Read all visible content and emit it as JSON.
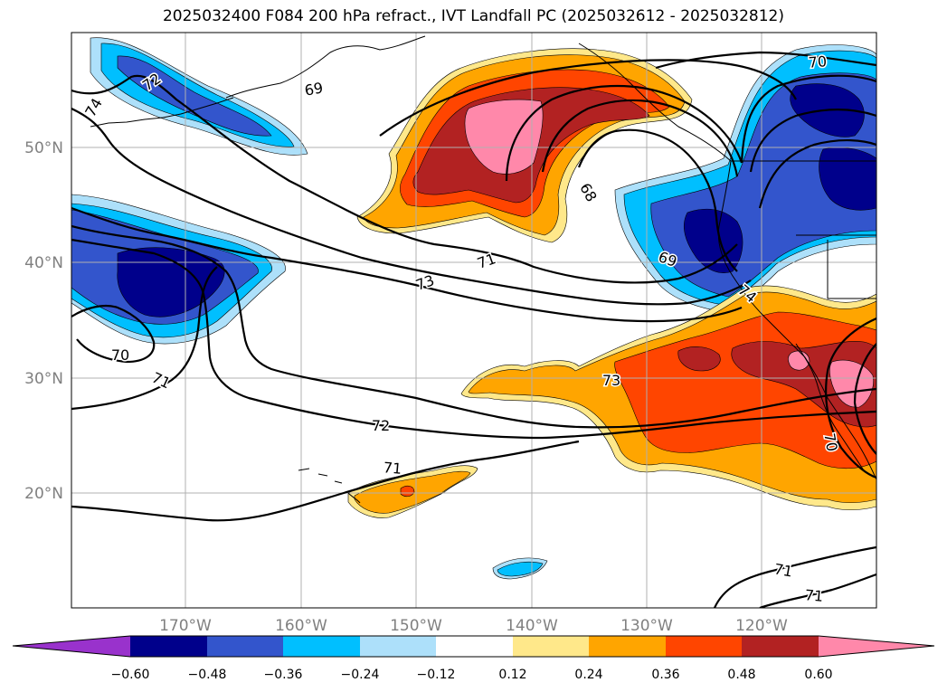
{
  "title": "2025032400 F084 200 hPa refract., IVT Landfall PC (2025032612 - 2025032812)",
  "lat_labels": [
    "50°N",
    "40°N",
    "30°N",
    "20°N"
  ],
  "lon_labels": [
    "170°W",
    "160°W",
    "150°W",
    "140°W",
    "130°W",
    "120°W"
  ],
  "contour_labels": [
    {
      "text": "72",
      "rot": 35
    },
    {
      "text": "74",
      "rot": 60
    },
    {
      "text": "69",
      "rot": 10
    },
    {
      "text": "70",
      "rot": 5
    },
    {
      "text": "68",
      "rot": -60
    },
    {
      "text": "71",
      "rot": 20
    },
    {
      "text": "73",
      "rot": 20
    },
    {
      "text": "69",
      "rot": -20
    },
    {
      "text": "74",
      "rot": -40
    },
    {
      "text": "70",
      "rot": 0
    },
    {
      "text": "71",
      "rot": -25
    },
    {
      "text": "73",
      "rot": 0
    },
    {
      "text": "72",
      "rot": 0
    },
    {
      "text": "71",
      "rot": -5
    },
    {
      "text": "70",
      "rot": -80
    },
    {
      "text": "71",
      "rot": -10
    },
    {
      "text": "71",
      "rot": -5
    }
  ],
  "colorbar": {
    "tick_labels": [
      "−0.60",
      "−0.48",
      "−0.36",
      "−0.24",
      "−0.12",
      "0.12",
      "0.24",
      "0.36",
      "0.48",
      "0.60"
    ],
    "colors": [
      "#9932CC",
      "#00008B",
      "#3355CC",
      "#00BFFF",
      "#ADE0FA",
      "#FFFFFF",
      "#FFE88A",
      "#FFA500",
      "#FF4500",
      "#B22222",
      "#FF88AA"
    ]
  },
  "colors": {
    "dark_blue": "#00008B",
    "mid_blue": "#3355CC",
    "cyan": "#00BFFF",
    "light_blue": "#ADE0FA",
    "light_yellow": "#FFE88A",
    "orange": "#FFA500",
    "red_orange": "#FF4500",
    "dark_red": "#B22222",
    "pink": "#FF88AA",
    "grid": "#B0B0B0"
  }
}
